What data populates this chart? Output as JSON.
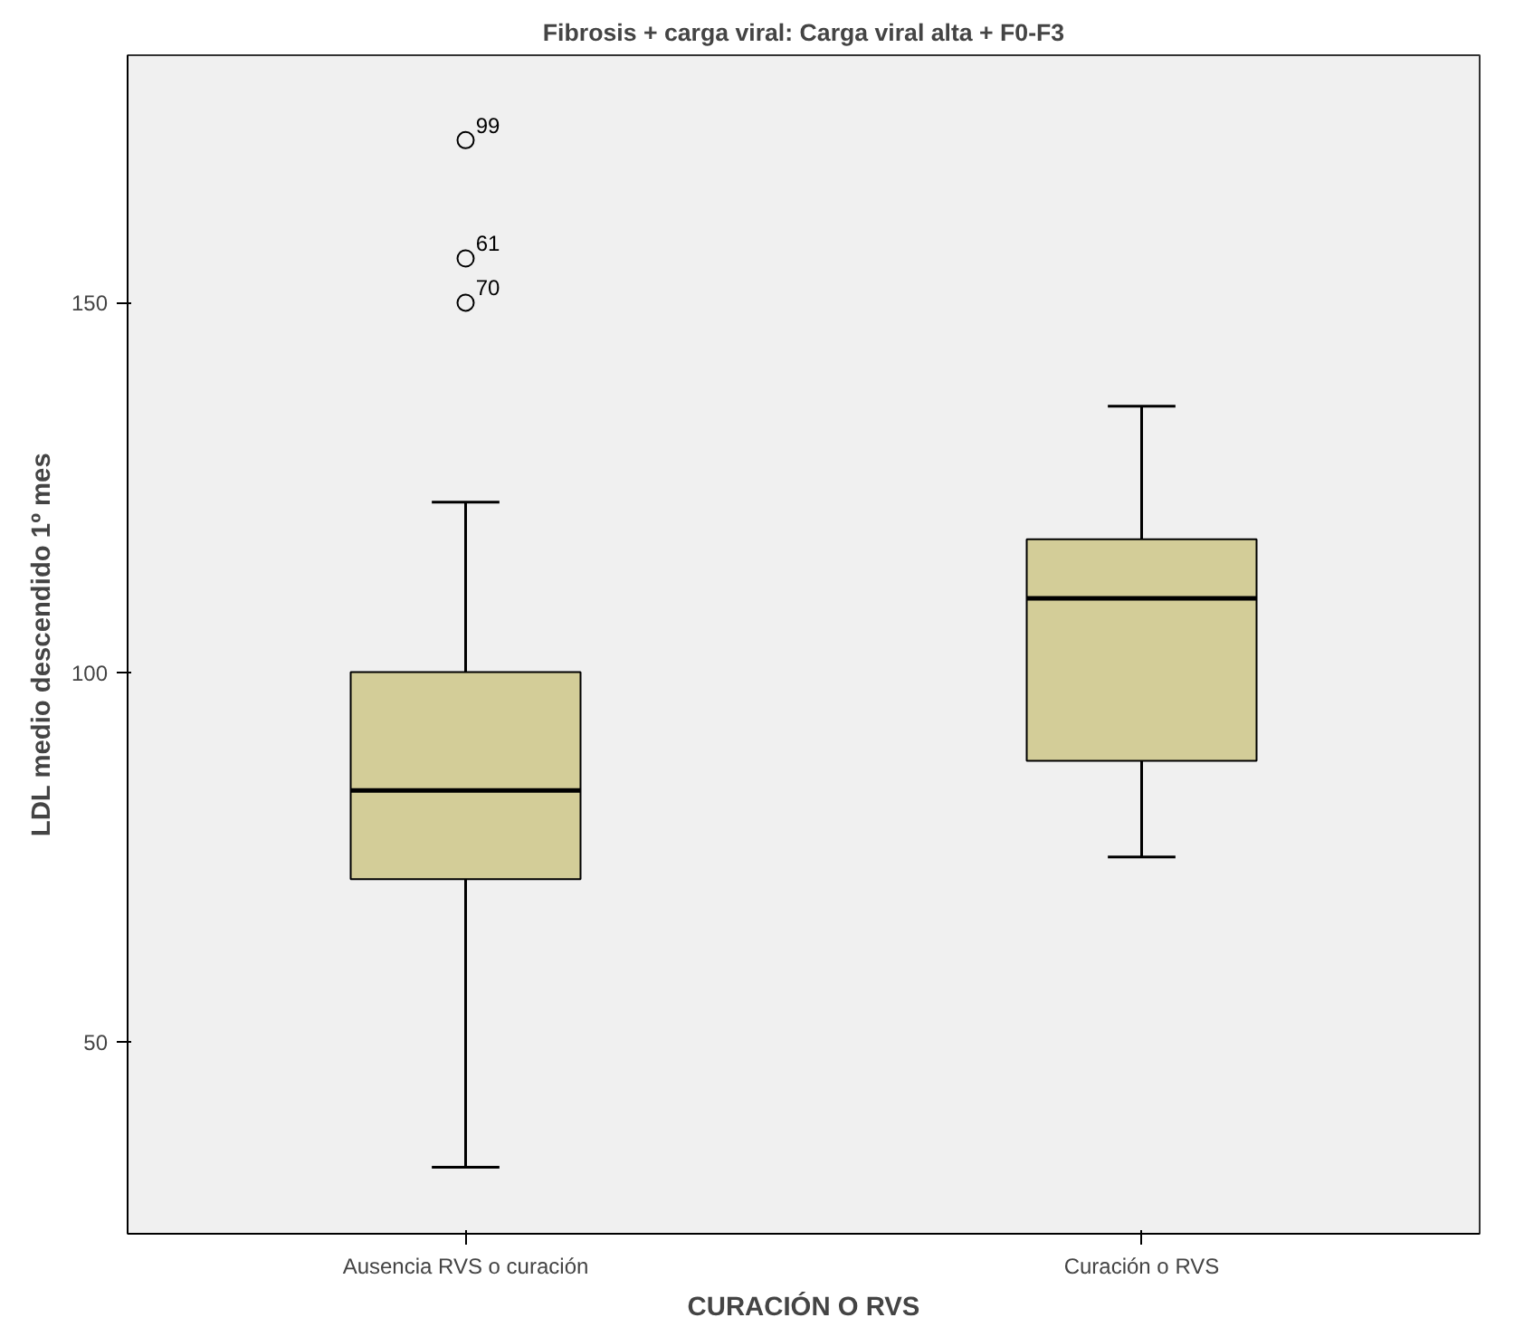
{
  "chart_data": {
    "type": "box",
    "title": "Fibrosis + carga viral: Carga viral alta + F0-F3",
    "xlabel": "CURACIÓN O RVS",
    "ylabel": "LDL medio descendido 1º mes",
    "categories": [
      "Ausencia RVS o curación",
      "Curación o RVS"
    ],
    "color": "#d3cd98",
    "boxes": [
      {
        "low": 33,
        "q1": 72,
        "median": 84,
        "q3": 100,
        "high": 123,
        "outliers": [
          172,
          156,
          150
        ]
      },
      {
        "low": 75,
        "q1": 88,
        "median": 110,
        "q3": 118,
        "high": 136
      }
    ],
    "annotations": [
      "99",
      "61",
      "70"
    ],
    "ylim": [
      24,
      183.5
    ],
    "yticks": [
      50,
      100,
      150
    ],
    "grid": false,
    "marker": "circle"
  }
}
